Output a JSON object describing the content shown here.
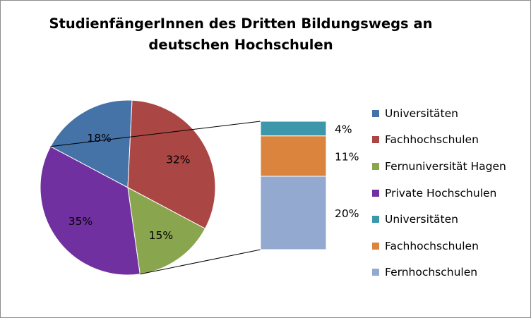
{
  "chart_data": {
    "type": "bar-of-pie",
    "title": [
      "StudienfängerInnen des Dritten Bildungswegs an",
      "deutschen Hochschulen"
    ],
    "pie": {
      "slices": [
        {
          "label": "Universitäten",
          "value": 18,
          "display": "18%",
          "color": "#4572a7"
        },
        {
          "label": "Fachhochschulen",
          "value": 32,
          "display": "32%",
          "color": "#aa4643"
        },
        {
          "label": "Fernuniversität Hagen",
          "value": 15,
          "display": "15%",
          "color": "#89a54e"
        },
        {
          "label": "Private Hochschulen",
          "value": 35,
          "display": "35%",
          "color": "#7030a0"
        }
      ]
    },
    "bar": {
      "stack": [
        {
          "label": "Universitäten",
          "value": 4,
          "display": "4%",
          "color": "#3d97aa"
        },
        {
          "label": "Fachhochschulen",
          "value": 11,
          "display": "11%",
          "color": "#db843d"
        },
        {
          "label": "Fernhochschulen",
          "value": 20,
          "display": "20%",
          "color": "#93a9cf"
        }
      ]
    },
    "legend": [
      {
        "label": "Universitäten",
        "color": "#4572a7"
      },
      {
        "label": "Fachhochschulen",
        "color": "#aa4643"
      },
      {
        "label": "Fernuniversität Hagen",
        "color": "#89a54e"
      },
      {
        "label": "Private Hochschulen",
        "color": "#7030a0"
      },
      {
        "label": "Universitäten",
        "color": "#3d97aa"
      },
      {
        "label": "Fachhochschulen",
        "color": "#db843d"
      },
      {
        "label": "Fernhochschulen",
        "color": "#93a9cf"
      }
    ],
    "legend_position": "right"
  }
}
